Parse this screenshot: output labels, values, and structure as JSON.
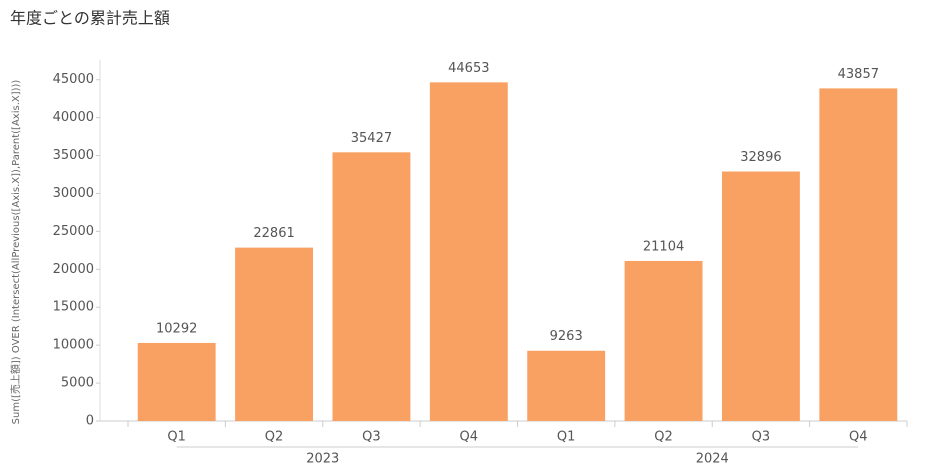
{
  "chart_data": {
    "type": "bar",
    "title": "年度ごとの累計売上額",
    "y_axis_label": "Sum([売上額]) OVER (Intersect(AllPrevious([Axis.X]),Parent([Axis.X])))",
    "categories": [
      "Q1",
      "Q2",
      "Q3",
      "Q4",
      "Q1",
      "Q2",
      "Q3",
      "Q4"
    ],
    "groups": [
      "2023",
      "2024"
    ],
    "values": [
      10292,
      22861,
      35427,
      44653,
      9263,
      21104,
      32896,
      43857
    ],
    "color": "#f9a163",
    "ylim": [
      0,
      47600
    ],
    "yticks": [
      0,
      5000,
      10000,
      15000,
      20000,
      25000,
      30000,
      35000,
      40000,
      45000
    ]
  }
}
